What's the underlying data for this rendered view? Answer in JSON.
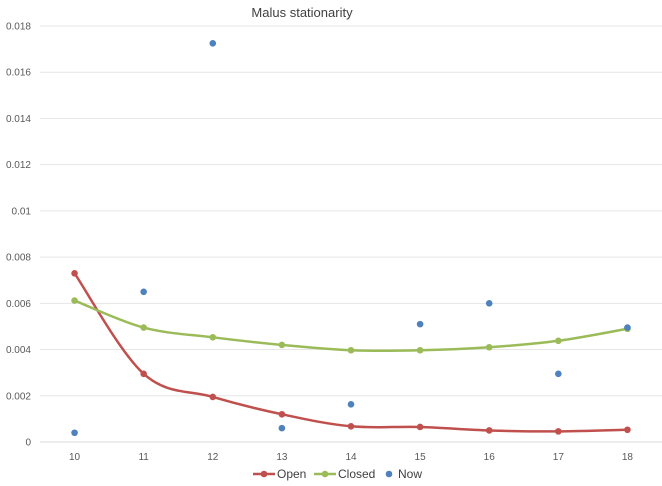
{
  "chart_data": {
    "type": "line",
    "title": "Malus  stationarity",
    "categories": [
      "10",
      "11",
      "12",
      "13",
      "14",
      "15",
      "16",
      "17",
      "18"
    ],
    "y_ticks": [
      "0",
      "0.002",
      "0.004",
      "0.006",
      "0.008",
      "0.01",
      "0.012",
      "0.014",
      "0.016",
      "0.018"
    ],
    "ylim": [
      0,
      0.018
    ],
    "grid": true,
    "legend_position": "bottom",
    "series": [
      {
        "name": "Open",
        "style": "line-with-markers",
        "color": "#c0504d",
        "values": [
          0.0073,
          0.00295,
          0.00195,
          0.0012,
          0.00068,
          0.00065,
          0.0005,
          0.00046,
          0.00053
        ]
      },
      {
        "name": "Closed",
        "style": "line-with-markers",
        "color": "#9bbb59",
        "values": [
          0.00612,
          0.00495,
          0.00453,
          0.0042,
          0.00397,
          0.00397,
          0.0041,
          0.00438,
          0.0049
        ]
      },
      {
        "name": "Now",
        "style": "markers",
        "color": "#4f81bd",
        "values": [
          0.0004,
          0.0065,
          0.01725,
          0.0006,
          0.00163,
          0.0051,
          0.006,
          0.00295,
          0.00495
        ]
      }
    ]
  }
}
